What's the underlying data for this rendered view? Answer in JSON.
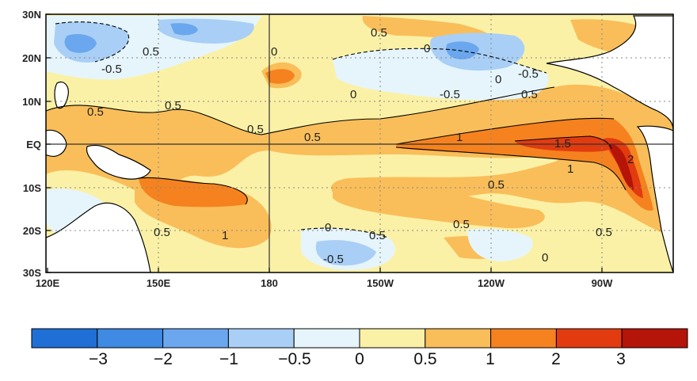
{
  "map": {
    "lat_labels": [
      "30N",
      "20N",
      "10N",
      "EQ",
      "10S",
      "20S",
      "30S"
    ],
    "lon_labels": [
      "120E",
      "150E",
      "180",
      "150W",
      "120W",
      "90W"
    ],
    "contour_labels": [
      "0.5",
      "0",
      "-0.5",
      "0",
      "-0.5",
      "-0.5",
      "0.5",
      "0.5",
      "0.5",
      "0.5",
      "0.5",
      "0",
      "1",
      "1.5",
      "1",
      "2",
      "0.5",
      "0.5",
      "0.5",
      "1",
      "0.5",
      "0",
      "-0.5",
      "0.5",
      "0",
      "0",
      "0.5"
    ]
  },
  "colorbar": {
    "labels": [
      "−3",
      "−2",
      "−1",
      "−0.5",
      "0",
      "0.5",
      "1",
      "2",
      "3"
    ],
    "colors": [
      "#1f6fd6",
      "#3f8ae2",
      "#6aa7ee",
      "#a9cff6",
      "#e6f5fb",
      "#fbf1a6",
      "#f9be5a",
      "#f5821e",
      "#e23b10",
      "#b51508"
    ]
  }
}
